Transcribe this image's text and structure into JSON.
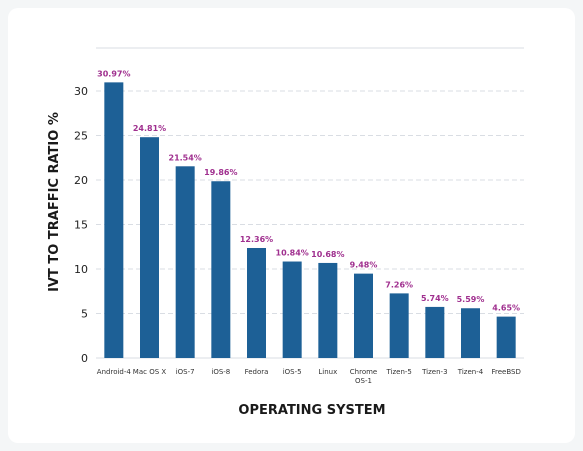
{
  "chart_data": {
    "type": "bar",
    "xlabel": "OPERATING SYSTEM",
    "ylabel": "IVT TO TRAFFIC RATIO %",
    "ylim": [
      0,
      30
    ],
    "yticks": [
      0,
      5,
      10,
      15,
      20,
      25,
      30
    ],
    "grid": true,
    "categories": [
      [
        "Android-4"
      ],
      [
        "Mac OS X"
      ],
      [
        "iOS-7"
      ],
      [
        "iOS-8"
      ],
      [
        "Fedora"
      ],
      [
        "iOS-5"
      ],
      [
        "Linux"
      ],
      [
        "Chrome",
        "OS-1"
      ],
      [
        "Tizen-5"
      ],
      [
        "Tizen-3"
      ],
      [
        "Tizen-4"
      ],
      [
        "FreeBSD"
      ]
    ],
    "values": [
      30.97,
      24.81,
      21.54,
      19.86,
      12.36,
      10.84,
      10.68,
      9.48,
      7.26,
      5.74,
      5.59,
      4.65
    ],
    "value_labels": [
      "30.97%",
      "24.81%",
      "21.54%",
      "19.86%",
      "12.36%",
      "10.84%",
      "10.68%",
      "9.48%",
      "7.26%",
      "5.74%",
      "5.59%",
      "4.65%"
    ],
    "colors": {
      "bar": "#1d6096",
      "value_label": "#a0308f",
      "grid": "#d9dde3"
    }
  }
}
